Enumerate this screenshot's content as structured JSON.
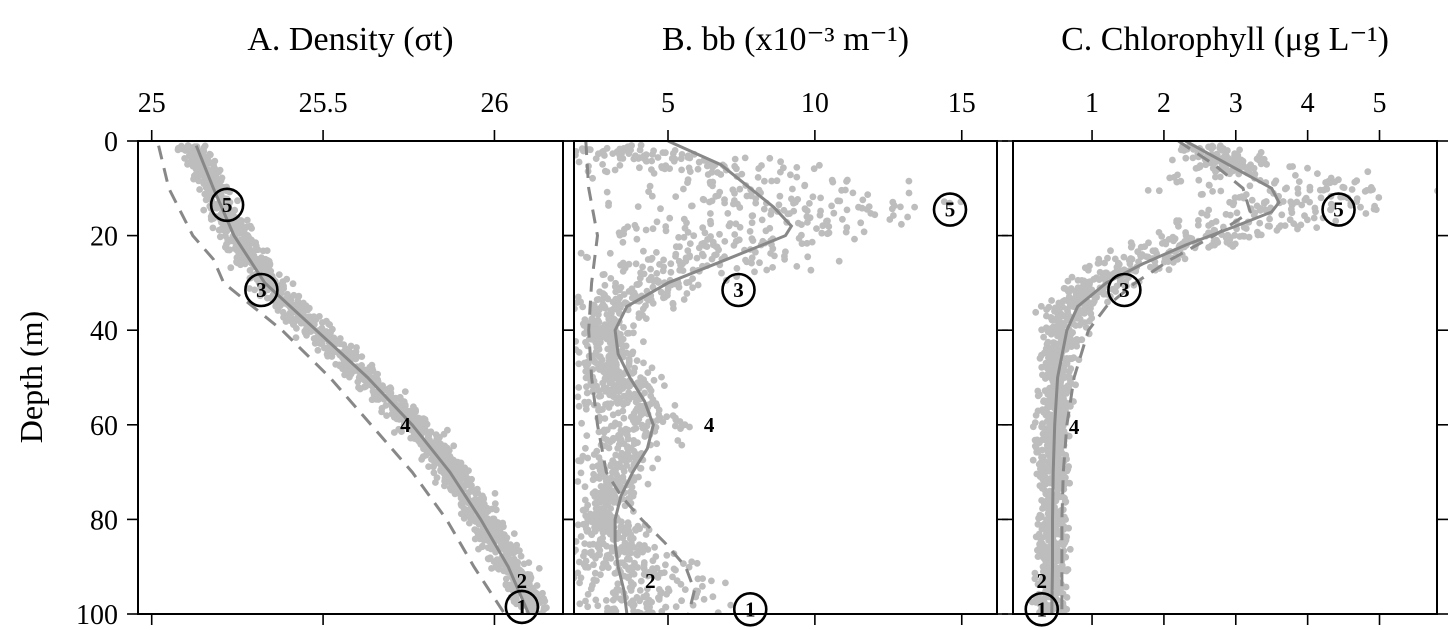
{
  "figure": {
    "ylabel": "Depth (m)",
    "yticks": [
      "0",
      "20",
      "40",
      "60",
      "80",
      "100"
    ]
  },
  "chart_data": [
    {
      "type": "scatter",
      "title": "A. Density (σt)",
      "xlim": [
        24.96,
        26.2
      ],
      "ylim": [
        0,
        100
      ],
      "xticks": [
        25,
        25.5,
        26
      ],
      "xtick_labels": [
        "25",
        "25.5",
        "26"
      ],
      "point_color": "#bdbdbd",
      "line_color": "#888888",
      "cloud": {
        "depth": [
          1,
          10,
          20,
          30,
          40,
          50,
          60,
          70,
          80,
          90,
          100
        ],
        "center": [
          25.12,
          25.18,
          25.25,
          25.33,
          25.48,
          25.63,
          25.77,
          25.88,
          25.97,
          26.05,
          26.12
        ],
        "spread": [
          0.04,
          0.04,
          0.05,
          0.06,
          0.05,
          0.05,
          0.05,
          0.05,
          0.05,
          0.05,
          0.04
        ]
      },
      "series": [
        {
          "style": "solid",
          "depth": [
            1,
            10,
            20,
            30,
            40,
            50,
            60,
            70,
            80,
            90,
            100
          ],
          "x": [
            25.13,
            25.18,
            25.24,
            25.33,
            25.48,
            25.63,
            25.76,
            25.87,
            25.96,
            26.04,
            26.1
          ]
        },
        {
          "style": "dashed",
          "depth": [
            1,
            10,
            20,
            25,
            30,
            40,
            50,
            60,
            70,
            80,
            90,
            100
          ],
          "x": [
            25.02,
            25.05,
            25.12,
            25.18,
            25.21,
            25.38,
            25.52,
            25.64,
            25.76,
            25.86,
            25.94,
            26.03
          ]
        }
      ],
      "markers": [
        {
          "label": "5",
          "x": 25.22,
          "depth": 13.5,
          "circled": true
        },
        {
          "label": "3",
          "x": 25.32,
          "depth": 31.5,
          "circled": true
        },
        {
          "label": "4",
          "x": 25.74,
          "depth": 60,
          "circled": false
        },
        {
          "label": "2",
          "x": 26.08,
          "depth": 93,
          "circled": false
        },
        {
          "label": "1",
          "x": 26.08,
          "depth": 98.5,
          "circled": true
        }
      ]
    },
    {
      "type": "scatter",
      "title": "B. bb (x10⁻³ m⁻¹)",
      "xlim": [
        1.8,
        16.2
      ],
      "ylim": [
        0,
        100
      ],
      "xticks": [
        5,
        10,
        15
      ],
      "xtick_labels": [
        "5",
        "10",
        "15"
      ],
      "point_color": "#bdbdbd",
      "line_color": "#888888",
      "cloud": {
        "depth": [
          1,
          5,
          10,
          15,
          20,
          25,
          30,
          35,
          40,
          45,
          50,
          55,
          60,
          65,
          70,
          75,
          80,
          85,
          90,
          95,
          100
        ],
        "center": [
          3.2,
          6.0,
          8.0,
          8.8,
          7.8,
          6.0,
          4.5,
          3.3,
          2.9,
          3.0,
          3.2,
          3.5,
          3.8,
          3.6,
          3.2,
          3.0,
          2.9,
          3.1,
          3.6,
          4.3,
          4.2
        ],
        "spread": [
          1.1,
          3.8,
          5.5,
          6.0,
          5.0,
          3.5,
          2.4,
          1.5,
          0.8,
          0.9,
          1.3,
          1.7,
          1.9,
          1.6,
          1.0,
          0.8,
          0.8,
          1.2,
          2.4,
          2.6,
          2.2
        ]
      },
      "series": [
        {
          "style": "solid",
          "depth": [
            0,
            5,
            10,
            14,
            18,
            20,
            25,
            30,
            35,
            40,
            45,
            50,
            55,
            60,
            65,
            70,
            75,
            80,
            85,
            90,
            95,
            100
          ],
          "x": [
            5.0,
            6.8,
            7.8,
            8.6,
            9.2,
            9.0,
            7.0,
            5.0,
            3.6,
            3.2,
            3.3,
            3.7,
            4.2,
            4.5,
            4.3,
            3.8,
            3.4,
            3.2,
            3.2,
            3.3,
            3.5,
            3.6
          ]
        },
        {
          "style": "dashed",
          "depth": [
            0,
            10,
            20,
            30,
            40,
            50,
            60,
            70,
            75,
            80,
            85,
            90,
            95,
            100
          ],
          "x": [
            2.2,
            2.3,
            2.6,
            2.4,
            2.3,
            2.4,
            2.6,
            2.9,
            3.4,
            4.1,
            4.9,
            5.6,
            5.9,
            5.7
          ]
        }
      ],
      "markers": [
        {
          "label": "5",
          "x": 14.6,
          "depth": 14.5,
          "circled": true
        },
        {
          "label": "3",
          "x": 7.4,
          "depth": 31.5,
          "circled": true
        },
        {
          "label": "4",
          "x": 6.4,
          "depth": 60,
          "circled": false
        },
        {
          "label": "2",
          "x": 4.4,
          "depth": 93,
          "circled": false
        },
        {
          "label": "1",
          "x": 7.8,
          "depth": 99,
          "circled": true
        }
      ]
    },
    {
      "type": "scatter",
      "title": "C. Chlorophyll (μg L⁻¹)",
      "xlim": [
        -0.1,
        5.8
      ],
      "ylim": [
        0,
        100
      ],
      "xticks": [
        1,
        2,
        3,
        4,
        5
      ],
      "xtick_labels": [
        "1",
        "2",
        "3",
        "4",
        "5"
      ],
      "point_color": "#bdbdbd",
      "line_color": "#888888",
      "cloud": {
        "depth": [
          1,
          5,
          10,
          14,
          18,
          22,
          26,
          30,
          35,
          40,
          50,
          60,
          70,
          80,
          90,
          100
        ],
        "center": [
          2.5,
          3.0,
          3.6,
          3.8,
          3.1,
          2.3,
          1.6,
          1.1,
          0.75,
          0.6,
          0.5,
          0.45,
          0.45,
          0.45,
          0.45,
          0.4
        ],
        "spread": [
          0.3,
          0.8,
          1.5,
          1.4,
          1.0,
          0.8,
          0.6,
          0.45,
          0.35,
          0.25,
          0.2,
          0.2,
          0.2,
          0.2,
          0.2,
          0.2
        ]
      },
      "series": [
        {
          "style": "solid",
          "depth": [
            0,
            5,
            10,
            13,
            15,
            18,
            22,
            26,
            30,
            35,
            40,
            50,
            60,
            70,
            80,
            90,
            100
          ],
          "x": [
            2.3,
            2.9,
            3.5,
            3.6,
            3.5,
            3.0,
            2.3,
            1.7,
            1.2,
            0.8,
            0.65,
            0.52,
            0.48,
            0.46,
            0.45,
            0.45,
            0.44
          ]
        },
        {
          "style": "dashed",
          "depth": [
            0,
            5,
            10,
            15,
            20,
            25,
            30,
            35,
            40,
            50,
            60,
            70,
            80,
            90,
            100
          ],
          "x": [
            2.2,
            2.7,
            3.1,
            3.2,
            2.7,
            2.1,
            1.6,
            1.2,
            0.95,
            0.75,
            0.65,
            0.6,
            0.58,
            0.58,
            0.58
          ]
        }
      ],
      "markers": [
        {
          "label": "5",
          "x": 4.43,
          "depth": 14.5,
          "circled": true
        },
        {
          "label": "3",
          "x": 1.45,
          "depth": 31.5,
          "circled": true
        },
        {
          "label": "4",
          "x": 0.75,
          "depth": 60.5,
          "circled": false
        },
        {
          "label": "2",
          "x": 0.3,
          "depth": 93,
          "circled": false
        },
        {
          "label": "1",
          "x": 0.3,
          "depth": 99,
          "circled": true
        }
      ]
    }
  ]
}
